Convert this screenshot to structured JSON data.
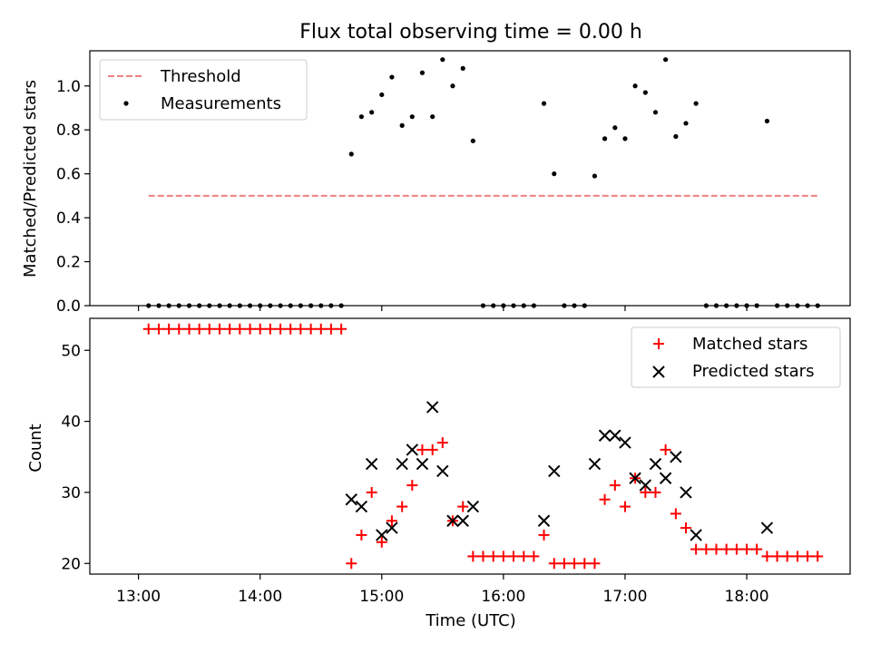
{
  "chart_data": [
    {
      "type": "scatter",
      "title": "Flux total observing time = 0.00 h",
      "ylabel": "Matched/Predicted stars",
      "xlabel": "",
      "x_units": "hours (UTC)",
      "xlim": [
        12.6,
        18.85
      ],
      "ylim": [
        0,
        1.16
      ],
      "yticks": [
        0.0,
        0.2,
        0.4,
        0.6,
        0.8,
        1.0
      ],
      "ytick_labels": [
        "0.0",
        "0.2",
        "0.4",
        "0.6",
        "0.8",
        "1.0"
      ],
      "legend": {
        "position": "upper left",
        "entries": [
          "Threshold",
          "Measurements"
        ]
      },
      "threshold": {
        "name": "Threshold",
        "value": 0.5,
        "x": [
          13.083,
          18.583
        ],
        "color": "#f08080",
        "style": "dashed"
      },
      "measurements": {
        "name": "Measurements",
        "color": "#000000",
        "x": [
          13.083,
          13.167,
          13.25,
          13.333,
          13.417,
          13.5,
          13.583,
          13.667,
          13.75,
          13.833,
          13.917,
          14.0,
          14.083,
          14.167,
          14.25,
          14.333,
          14.417,
          14.5,
          14.583,
          14.667,
          14.75,
          14.833,
          14.917,
          15.0,
          15.083,
          15.167,
          15.25,
          15.333,
          15.417,
          15.5,
          15.583,
          15.667,
          15.75,
          15.833,
          15.917,
          16.0,
          16.083,
          16.167,
          16.25,
          16.333,
          16.417,
          16.5,
          16.583,
          16.667,
          16.75,
          16.833,
          16.917,
          17.0,
          17.083,
          17.167,
          17.25,
          17.333,
          17.417,
          17.5,
          17.583,
          17.667,
          17.75,
          17.833,
          17.917,
          18.0,
          18.083,
          18.167,
          18.25,
          18.333,
          18.417,
          18.5,
          18.583
        ],
        "y": [
          0,
          0,
          0,
          0,
          0,
          0,
          0,
          0,
          0,
          0,
          0,
          0,
          0,
          0,
          0,
          0,
          0,
          0,
          0,
          0,
          0.69,
          0.86,
          0.88,
          0.96,
          1.04,
          0.82,
          0.86,
          1.06,
          0.86,
          1.12,
          1.0,
          1.08,
          0.75,
          0,
          0,
          0,
          0,
          0,
          0,
          0.92,
          0.6,
          0,
          0,
          0,
          0.59,
          0.76,
          0.81,
          0.76,
          1.0,
          0.97,
          0.88,
          1.12,
          0.77,
          0.83,
          0.92,
          0,
          0,
          0,
          0,
          0,
          0,
          0.84,
          0,
          0,
          0,
          0,
          0
        ]
      }
    },
    {
      "type": "scatter",
      "title": "",
      "xlabel": "Time (UTC)",
      "ylabel": "Count",
      "x_units": "hours (UTC)",
      "xlim": [
        12.6,
        18.85
      ],
      "ylim": [
        18.5,
        54.5
      ],
      "yticks": [
        20,
        30,
        40,
        50
      ],
      "ytick_labels": [
        "20",
        "30",
        "40",
        "50"
      ],
      "xticks": [
        13,
        14,
        15,
        16,
        17,
        18
      ],
      "xtick_labels": [
        "13:00",
        "14:00",
        "15:00",
        "16:00",
        "17:00",
        "18:00"
      ],
      "legend": {
        "position": "upper right",
        "entries": [
          "Matched stars",
          "Predicted stars"
        ]
      },
      "series": [
        {
          "name": "Matched stars",
          "marker": "plus",
          "color": "#ff0000",
          "x": [
            13.083,
            13.167,
            13.25,
            13.333,
            13.417,
            13.5,
            13.583,
            13.667,
            13.75,
            13.833,
            13.917,
            14.0,
            14.083,
            14.167,
            14.25,
            14.333,
            14.417,
            14.5,
            14.583,
            14.667,
            14.75,
            14.833,
            14.917,
            15.0,
            15.083,
            15.167,
            15.25,
            15.333,
            15.417,
            15.5,
            15.583,
            15.667,
            15.75,
            15.833,
            15.917,
            16.0,
            16.083,
            16.167,
            16.25,
            16.333,
            16.417,
            16.5,
            16.583,
            16.667,
            16.75,
            16.833,
            16.917,
            17.0,
            17.083,
            17.167,
            17.25,
            17.333,
            17.417,
            17.5,
            17.583,
            17.667,
            17.75,
            17.833,
            17.917,
            18.0,
            18.083,
            18.167,
            18.25,
            18.333,
            18.417,
            18.5,
            18.583
          ],
          "y": [
            53,
            53,
            53,
            53,
            53,
            53,
            53,
            53,
            53,
            53,
            53,
            53,
            53,
            53,
            53,
            53,
            53,
            53,
            53,
            53,
            20,
            24,
            30,
            23,
            26,
            28,
            31,
            36,
            36,
            37,
            26,
            28,
            21,
            21,
            21,
            21,
            21,
            21,
            21,
            24,
            20,
            20,
            20,
            20,
            20,
            29,
            31,
            28,
            32,
            30,
            30,
            36,
            27,
            25,
            22,
            22,
            22,
            22,
            22,
            22,
            22,
            21,
            21,
            21,
            21,
            21,
            21
          ]
        },
        {
          "name": "Predicted stars",
          "marker": "x",
          "color": "#000000",
          "x": [
            14.75,
            14.833,
            14.917,
            15.0,
            15.083,
            15.167,
            15.25,
            15.333,
            15.417,
            15.5,
            15.583,
            15.667,
            15.75,
            16.333,
            16.417,
            16.75,
            16.833,
            16.917,
            17.0,
            17.083,
            17.167,
            17.25,
            17.333,
            17.417,
            17.5,
            17.583,
            18.167
          ],
          "y": [
            29,
            28,
            34,
            24,
            25,
            34,
            36,
            34,
            42,
            33,
            26,
            26,
            28,
            26,
            33,
            34,
            38,
            38,
            37,
            32,
            31,
            34,
            32,
            35,
            30,
            24,
            25
          ]
        }
      ]
    }
  ]
}
